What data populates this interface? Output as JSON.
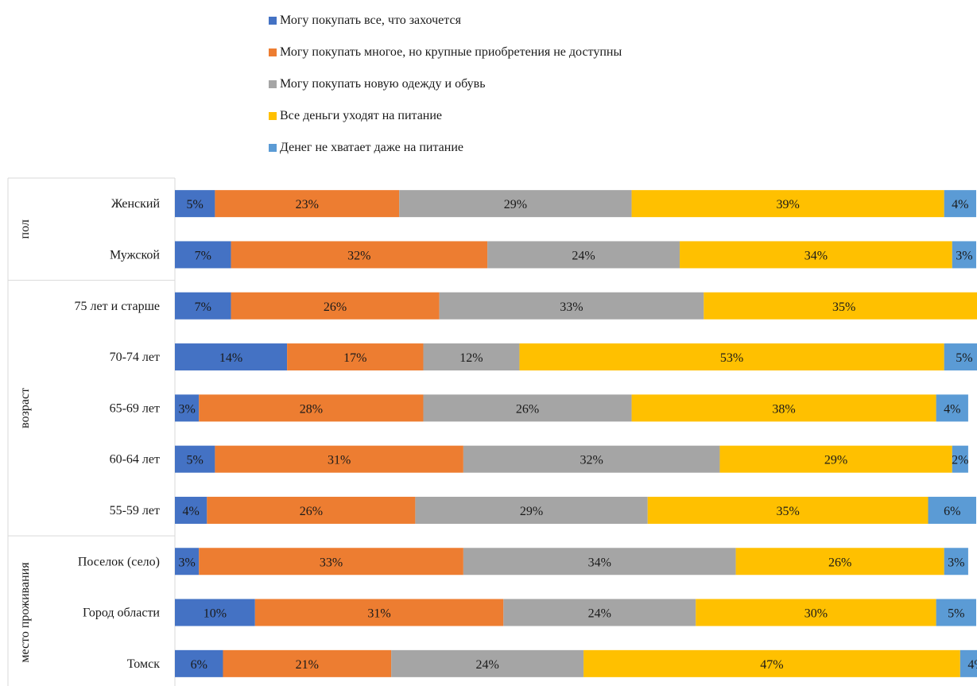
{
  "legend": [
    {
      "label": "Могу покупать все, что захочется",
      "color": "#4472C4"
    },
    {
      "label": "Могу покупать многое, но крупные приобретения не доступны",
      "color": "#ED7D31"
    },
    {
      "label": "Могу покупать новую одежду и обувь",
      "color": "#A5A5A5"
    },
    {
      "label": "Все деньги уходят на питание",
      "color": "#FFC000"
    },
    {
      "label": "Денег не хватает даже на питание",
      "color": "#5B9BD5"
    }
  ],
  "chart_data": {
    "type": "bar",
    "orientation": "horizontal",
    "stacked": "percent",
    "groups": [
      {
        "label": "пол",
        "categories": [
          "Женский",
          "Мужской"
        ]
      },
      {
        "label": "возраст",
        "categories": [
          "75 лет и старше",
          "70-74 лет",
          "65-69 лет",
          "60-64 лет",
          "55-59 лет"
        ]
      },
      {
        "label": "место проживания",
        "categories": [
          "Поселок (село)",
          "Город области",
          "Томск"
        ]
      }
    ],
    "categories": [
      "Женский",
      "Мужской",
      "75 лет и старше",
      "70-74 лет",
      "65-69 лет",
      "60-64 лет",
      "55-59 лет",
      "Поселок (село)",
      "Город области",
      "Томск"
    ],
    "series": [
      {
        "name": "Могу покупать все, что захочется",
        "color": "#4472C4",
        "values": [
          5,
          7,
          7,
          14,
          3,
          5,
          4,
          3,
          10,
          6
        ]
      },
      {
        "name": "Могу покупать многое, но крупные приобретения не доступны",
        "color": "#ED7D31",
        "values": [
          23,
          32,
          26,
          17,
          28,
          31,
          26,
          33,
          31,
          21
        ]
      },
      {
        "name": "Могу покупать новую одежду и обувь",
        "color": "#A5A5A5",
        "values": [
          29,
          24,
          33,
          12,
          26,
          32,
          29,
          34,
          24,
          24
        ]
      },
      {
        "name": "Все деньги уходят на питание",
        "color": "#FFC000",
        "values": [
          39,
          34,
          35,
          53,
          38,
          29,
          35,
          26,
          30,
          47
        ]
      },
      {
        "name": "Денег не хватает даже на питание",
        "color": "#5B9BD5",
        "values": [
          4,
          3,
          null,
          5,
          4,
          2,
          6,
          3,
          5,
          4
        ]
      }
    ],
    "value_suffix": "%",
    "xlim": [
      0,
      100
    ],
    "legend_position": "top"
  }
}
